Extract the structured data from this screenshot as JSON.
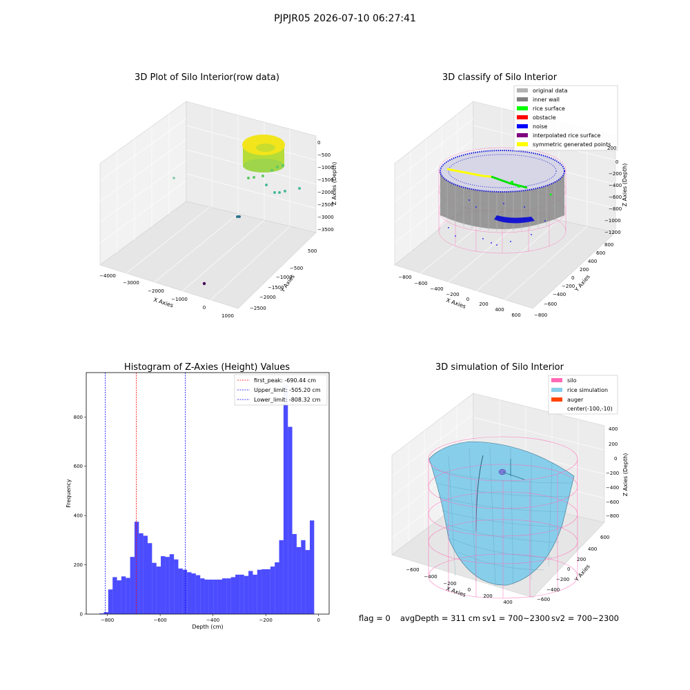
{
  "suptitle": "PJPJR05 2026-07-10 06:27:41",
  "panels": {
    "raw": {
      "title": "3D Plot of Silo Interior(row data)",
      "xlabel": "X Axies",
      "ylabel": "Y Axies",
      "zlabel": "Z Axies (Depth)",
      "xticks": [
        "−4000",
        "−3000",
        "−2000",
        "−1000",
        "0",
        "1000"
      ],
      "yticks": [
        "500",
        "−500",
        "−1000",
        "−1500",
        "−2000",
        "−2500"
      ],
      "zticks": [
        "0",
        "−500",
        "−1000",
        "−1500",
        "−2000",
        "−2500",
        "−3000",
        "−3500"
      ]
    },
    "classify": {
      "title": "3D classify of Silo Interior",
      "xlabel": "X Axies",
      "ylabel": "Y Axies",
      "zlabel": "Z Axies (Depth)",
      "xticks": [
        "−800",
        "−600",
        "−400",
        "−200",
        "0",
        "200",
        "400",
        "600"
      ],
      "yticks": [
        "800",
        "600",
        "400",
        "200",
        "0",
        "−200",
        "−400",
        "−600",
        "−800"
      ],
      "zticks": [
        "200",
        "0",
        "−200",
        "−400",
        "−600",
        "−800",
        "−1000",
        "−1200"
      ],
      "legend": [
        {
          "label": "original data",
          "color": "#b3b3b3"
        },
        {
          "label": "inner wall",
          "color": "#808080"
        },
        {
          "label": "rice surface",
          "color": "#00ff00"
        },
        {
          "label": "obstacle",
          "color": "#ff0000"
        },
        {
          "label": "noise",
          "color": "#0000ff"
        },
        {
          "label": "interpolated rice surface",
          "color": "#800080"
        },
        {
          "label": "symmetric generated points",
          "color": "#ffff00"
        }
      ]
    },
    "simulation": {
      "title": "3D simulation of Silo Interior",
      "xlabel": "X Axies",
      "ylabel": "Y Axies",
      "zlabel": "Z Axies (Depth)",
      "xticks": [
        "−600",
        "−400",
        "−200",
        "0",
        "200",
        "400"
      ],
      "yticks": [
        "600",
        "400",
        "200",
        "0",
        "−200",
        "−400",
        "−600"
      ],
      "zticks": [
        "400",
        "200",
        "0",
        "−200",
        "−400",
        "−600",
        "−800"
      ],
      "legend": [
        {
          "label": "silo",
          "color": "#ff69b4"
        },
        {
          "label": "rice simulation",
          "color": "#87ceeb"
        },
        {
          "label": "auger",
          "color": "#ff4500"
        },
        {
          "label": "center(-100,-10)",
          "color": ""
        }
      ]
    }
  },
  "chart_data": {
    "type": "bar",
    "title": "Histogram of Z-Axies (Height) Values",
    "xlabel": "Depth (cm)",
    "ylabel": "Frequency",
    "xlim": [
      -880,
      40
    ],
    "ylim": [
      0,
      980
    ],
    "xticks": [
      -800,
      -600,
      -400,
      -200,
      0
    ],
    "yticks": [
      0,
      200,
      400,
      600,
      800
    ],
    "bar_color": "#0000ff",
    "bin_width": 16.6,
    "bins_left": [
      -830,
      -813.4,
      -796.8,
      -780.2,
      -763.6,
      -747,
      -730.4,
      -713.8,
      -697.2,
      -680.6,
      -664,
      -647.4,
      -630.8,
      -614.2,
      -597.6,
      -581,
      -564.4,
      -547.8,
      -531.2,
      -514.6,
      -498,
      -481.4,
      -464.8,
      -448.2,
      -431.6,
      -415,
      -398.4,
      -381.8,
      -365.2,
      -348.6,
      -332,
      -315.4,
      -298.8,
      -282.2,
      -265.6,
      -249,
      -232.4,
      -215.8,
      -199.2,
      -182.6,
      -166,
      -149.4,
      -132.8,
      -116.2,
      -99.6,
      -83,
      -66.4,
      -49.8,
      -33.2,
      -16.6
    ],
    "values": [
      3,
      8,
      100,
      150,
      137,
      153,
      147,
      232,
      375,
      328,
      318,
      288,
      208,
      193,
      235,
      232,
      243,
      222,
      185,
      180,
      170,
      165,
      158,
      145,
      140,
      140,
      140,
      140,
      145,
      145,
      150,
      160,
      160,
      155,
      175,
      160,
      180,
      182,
      182,
      193,
      210,
      300,
      930,
      760,
      325,
      272,
      300,
      260,
      380,
      0
    ],
    "vlines": [
      {
        "label": "first_peak: -690.44 cm",
        "x": -690.44,
        "color": "#ff0000"
      },
      {
        "label": "Upper_limit: -505.20 cm",
        "x": -505.2,
        "color": "#0000ff"
      },
      {
        "label": "Lower_limit: -808.32 cm",
        "x": -808.32,
        "color": "#0000ff"
      }
    ],
    "legend_position": "top-right"
  },
  "status": {
    "flag": "flag = 0",
    "avg_depth": "avgDepth = 311 cm",
    "sv1": "sv1 = 700~2300",
    "sv2": "sv2 = 700~2300"
  }
}
